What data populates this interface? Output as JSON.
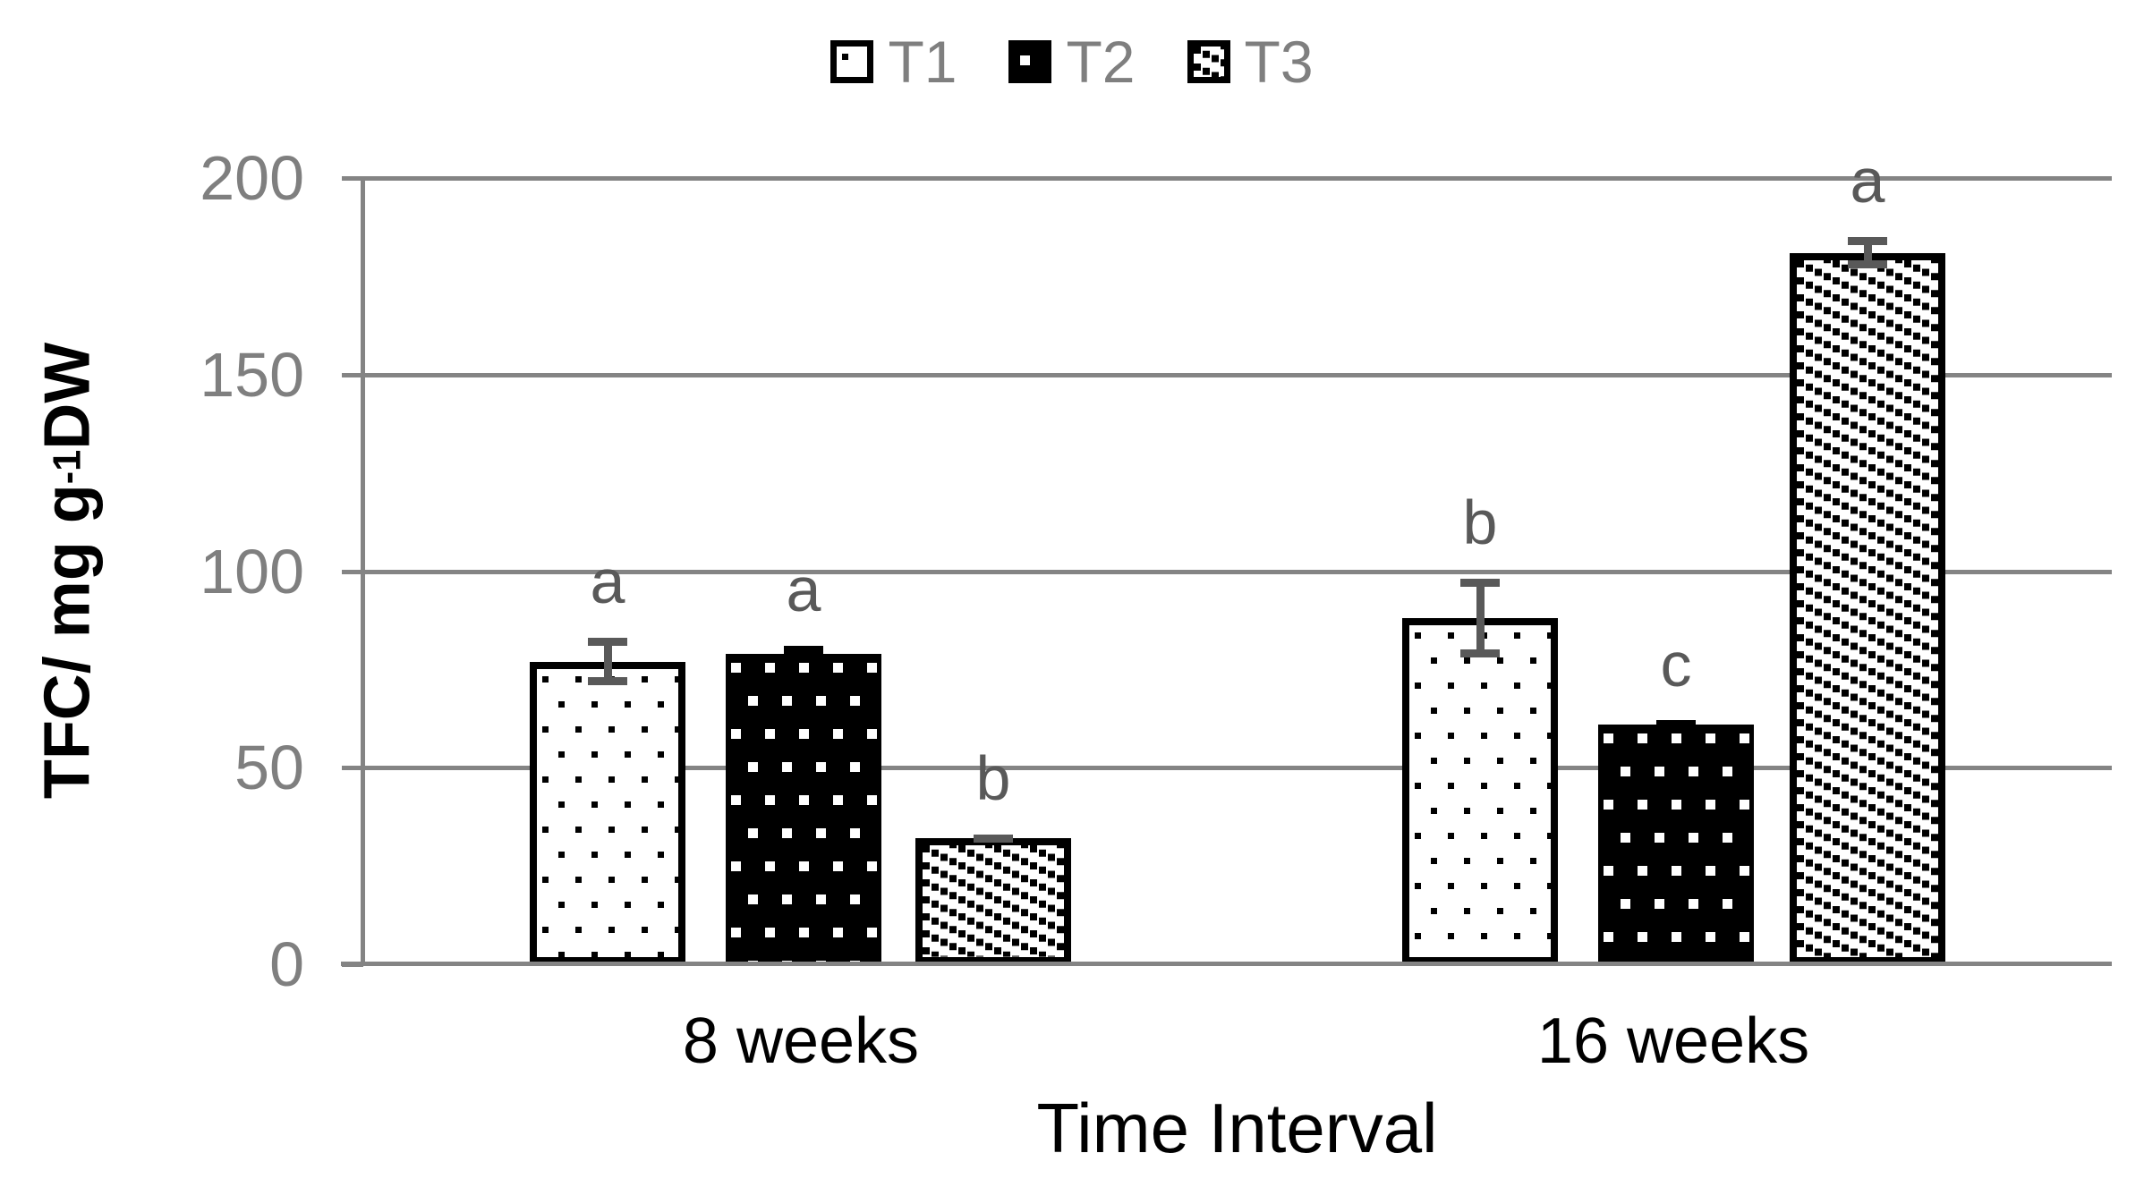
{
  "legend": {
    "items": [
      {
        "label": "T1",
        "swatch": "dots-sparse"
      },
      {
        "label": "T2",
        "swatch": "dots-inverse"
      },
      {
        "label": "T3",
        "swatch": "diagonal-hatch"
      }
    ]
  },
  "y_axis": {
    "title_prefix": "TFC/ mg g",
    "title_sup": "-1",
    "title_suffix": " DW",
    "ticks": [
      "200",
      "150",
      "100",
      "50",
      "0"
    ],
    "max": 200,
    "min": 0
  },
  "x_axis": {
    "title": "Time Interval",
    "categories": [
      "8 weeks",
      "16 weeks"
    ]
  },
  "colors": {
    "grid": "#848484",
    "tick_text": "#7f7f7f",
    "letter_text": "#595959",
    "error_bar_default": "#595959",
    "error_bar_t2": "#000000",
    "bar_border": "#000000"
  },
  "chart_data": {
    "type": "bar",
    "categories": [
      "8 weeks",
      "16 weeks"
    ],
    "series": [
      {
        "name": "T1",
        "pattern": "dots-sparse",
        "values": [
          77,
          88
        ],
        "errors": [
          6,
          10
        ],
        "letters": [
          "a",
          "b"
        ],
        "caps_below": true,
        "err_color": "#595959"
      },
      {
        "name": "T2",
        "pattern": "dots-inverse",
        "values": [
          79,
          61
        ],
        "errors": [
          2,
          1
        ],
        "letters": [
          "a",
          "c"
        ],
        "caps_below": false,
        "err_color": "#000000"
      },
      {
        "name": "T3",
        "pattern": "diagonal-hatch",
        "values": [
          32,
          181
        ],
        "errors": [
          1,
          4
        ],
        "letters": [
          "b",
          "a"
        ],
        "caps_below": true,
        "err_color": "#595959"
      }
    ],
    "title": "",
    "xlabel": "Time Interval",
    "ylabel": "TFC/ mg g-1 DW",
    "ylim": [
      0,
      200
    ],
    "grid": true,
    "gridline_step": 50,
    "legend_position": "top-center"
  }
}
